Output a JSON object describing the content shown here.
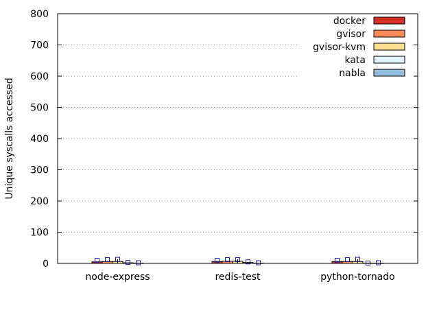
{
  "chart_data": {
    "type": "bar",
    "title": "",
    "xlabel": "",
    "ylabel": "Unique syscalls accessed",
    "ylim": [
      0,
      800
    ],
    "yticks": [
      0,
      100,
      200,
      300,
      400,
      500,
      600,
      700,
      800
    ],
    "grid": "horizontal dotted",
    "legend_position": "top-right",
    "categories": [
      "node-express",
      "redis-test",
      "python-tornado"
    ],
    "series": [
      {
        "name": "docker",
        "color": "#d73027",
        "values": [
          5,
          6,
          6
        ],
        "err": [
          10,
          10,
          10
        ]
      },
      {
        "name": "gvisor",
        "color": "#fc8d59",
        "values": [
          6,
          7,
          6
        ],
        "err": [
          12,
          12,
          12
        ]
      },
      {
        "name": "gvisor-kvm",
        "color": "#fee090",
        "values": [
          6,
          7,
          6
        ],
        "err": [
          13,
          12,
          13
        ]
      },
      {
        "name": "kata",
        "color": "#e0f3f8",
        "values": [
          2,
          3,
          1
        ],
        "err": [
          3,
          5,
          1
        ]
      },
      {
        "name": "nabla",
        "color": "#91bfdb",
        "values": [
          1,
          1,
          1
        ],
        "err": [
          2,
          2,
          2
        ]
      }
    ]
  }
}
